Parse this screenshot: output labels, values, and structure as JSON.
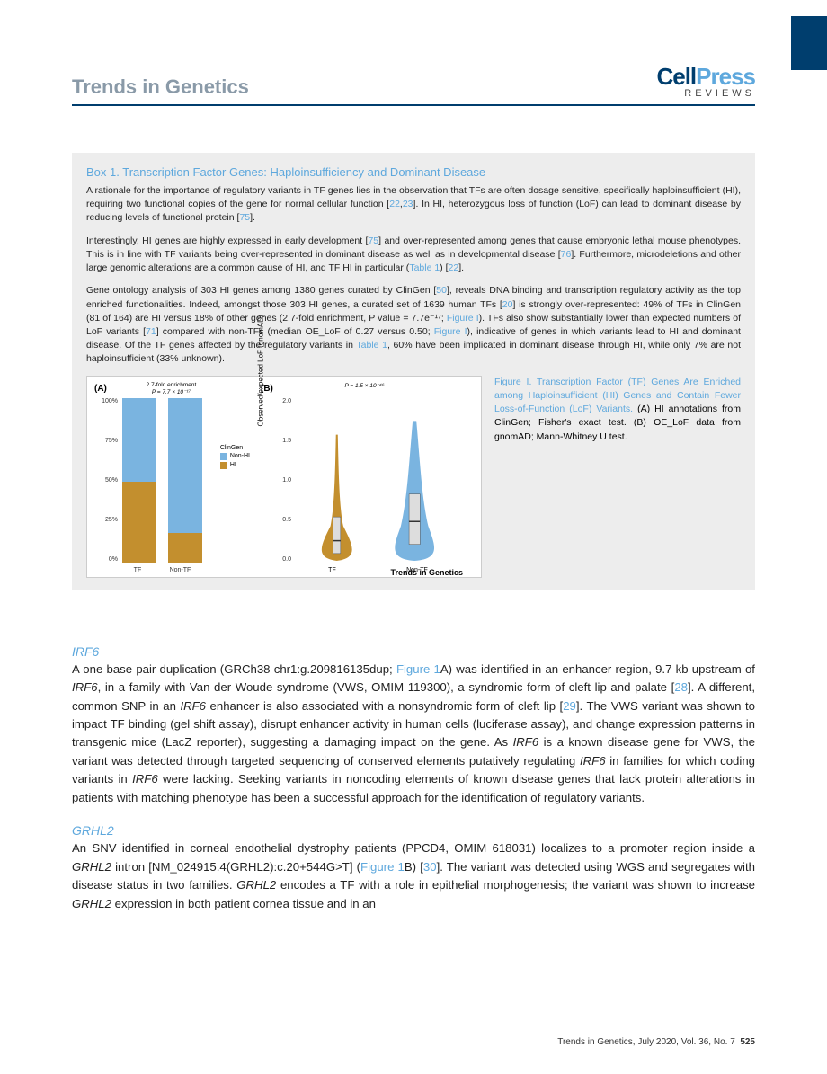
{
  "header": {
    "journal_title": "Trends in Genetics",
    "logo_cell": "Cell",
    "logo_press": "Press",
    "logo_sub": "REVIEWS"
  },
  "colors": {
    "brand_dark": "#003e6e",
    "brand_light": "#5ea8dd",
    "hi_gold": "#c38f2e",
    "nonhi_blue": "#7ab4e0",
    "box_bg": "#ededed"
  },
  "box": {
    "title": "Box 1. Transcription Factor Genes: Haploinsufficiency and Dominant Disease",
    "p1_a": "A rationale for the importance of regulatory variants in TF genes lies in the observation that TFs are often dosage sensitive, specifically haploinsufficient (HI), requiring two functional copies of the gene for normal cellular function [",
    "p1_r1": "22",
    "p1_b": ",",
    "p1_r2": "23",
    "p1_c": "]. In HI, heterozygous loss of function (LoF) can lead to dominant disease by reducing levels of functional protein [",
    "p1_r3": "75",
    "p1_d": "].",
    "p2_a": "Interestingly, HI genes are highly expressed in early development [",
    "p2_r1": "75",
    "p2_b": "] and over-represented among genes that cause embryonic lethal mouse phenotypes. This is in line with TF variants being over-represented in dominant disease as well as in developmental disease [",
    "p2_r2": "76",
    "p2_c": "]. Furthermore, microdeletions and other large genomic alterations are a common cause of HI, and TF HI in particular (",
    "p2_r3": "Table 1",
    "p2_d": ") [",
    "p2_r4": "22",
    "p2_e": "].",
    "p3_a": "Gene ontology analysis of 303 HI genes among 1380 genes curated by ClinGen [",
    "p3_r1": "50",
    "p3_b": "], reveals DNA binding and transcription regulatory activity as the top enriched functionalities. Indeed, amongst those 303 HI genes, a curated set of 1639 human TFs [",
    "p3_r2": "20",
    "p3_c": "] is strongly over-represented: 49% of TFs in ClinGen (81 of 164) are HI versus 18% of other genes (2.7-fold enrichment, P value = 7.7e⁻¹⁷; ",
    "p3_r3": "Figure I",
    "p3_d": "). TFs also show substantially lower than expected numbers of LoF variants [",
    "p3_r4": "71",
    "p3_e": "] compared with non-TFs (median OE_LoF of 0.27 versus 0.50; ",
    "p3_r5": "Figure I",
    "p3_f": "), indicative of genes in which variants lead to HI and dominant disease. Of the TF genes affected by the regulatory variants in ",
    "p3_r6": "Table 1",
    "p3_g": ", 60% have been implicated in dominant disease through HI, while only 7% are not haploinsufficient (33% unknown)."
  },
  "figI": {
    "caption_title": "Figure I. Transcription Factor (TF) Genes Are Enriched among Haploinsufficient (HI) Genes and Contain Fewer Loss-of-Function (LoF) Variants.",
    "caption_body": " (A) HI annotations from ClinGen; Fisher's exact test. (B) OE_LoF data from gnomAD; Mann-Whitney U test.",
    "brand": "Trends in Genetics",
    "panelA": {
      "label": "(A)",
      "subtitle_line1": "2.7-fold enrichment",
      "subtitle_line2": "P = 7.7 × 10⁻¹⁷",
      "yticks": [
        "100%",
        "75%",
        "50%",
        "25%",
        "0%"
      ],
      "categories": [
        "TF",
        "Non-TF"
      ],
      "hi_pct": [
        49,
        18
      ],
      "nonhi_pct": [
        51,
        82
      ],
      "legend_title": "ClinGen",
      "legend_nonhi": "Non-HI",
      "legend_hi": "HI"
    },
    "panelB": {
      "label": "(B)",
      "subtitle": "P = 1.5 × 10⁻⁴⁶",
      "ylabel": "Observed/expected LoF (gnomAD)",
      "yticks": [
        "2.0",
        "1.5",
        "1.0",
        "0.5",
        "0.0"
      ],
      "categories": [
        "TF",
        "Non-TF"
      ],
      "medians": [
        0.27,
        0.5
      ]
    }
  },
  "irf6": {
    "title": "IRF6",
    "a": "A one base pair duplication (GRCh38 chr1:g.209816135dup; ",
    "r1": "Figure 1",
    "b": "A) was identified in an enhancer region, 9.7 kb upstream of ",
    "g1": "IRF6",
    "c": ", in a family with Van der Woude syndrome (VWS, OMIM 119300), a syndromic form of cleft lip and palate [",
    "r2": "28",
    "d": "]. A different, common SNP in an ",
    "g2": "IRF6",
    "e": " enhancer is also associated with a nonsyndromic form of cleft lip [",
    "r3": "29",
    "f": "]. The VWS variant was shown to impact TF binding (gel shift assay), disrupt enhancer activity in human cells (luciferase assay), and change expression patterns in transgenic mice (LacZ reporter), suggesting a damaging impact on the gene. As ",
    "g3": "IRF6",
    "g": " is a known disease gene for VWS, the variant was detected through targeted sequencing of conserved elements putatively regulating ",
    "g4": "IRF6",
    "h": " in families for which coding variants in ",
    "g5": "IRF6",
    "i": " were lacking. Seeking variants in noncoding elements of known disease genes that lack protein alterations in patients with matching phenotype has been a successful approach for the identification of regulatory variants."
  },
  "grhl2": {
    "title": "GRHL2",
    "a": "An SNV identified in corneal endothelial dystrophy patients (PPCD4, OMIM 618031) localizes to a promoter region inside a ",
    "g1": "GRHL2",
    "b": " intron [NM_024915.4(GRHL2):c.20+544G>T] (",
    "r1": "Figure 1",
    "c": "B) [",
    "r2": "30",
    "d": "]. The variant was detected using WGS and segregates with disease status in two families. ",
    "g2": "GRHL2",
    "e": " encodes a TF with a role in epithelial morphogenesis; the variant was shown to increase ",
    "g3": "GRHL2",
    "f": " expression in both patient cornea tissue and in an"
  },
  "footer": {
    "text": "Trends in Genetics, July 2020, Vol. 36, No. 7",
    "page": "525"
  }
}
